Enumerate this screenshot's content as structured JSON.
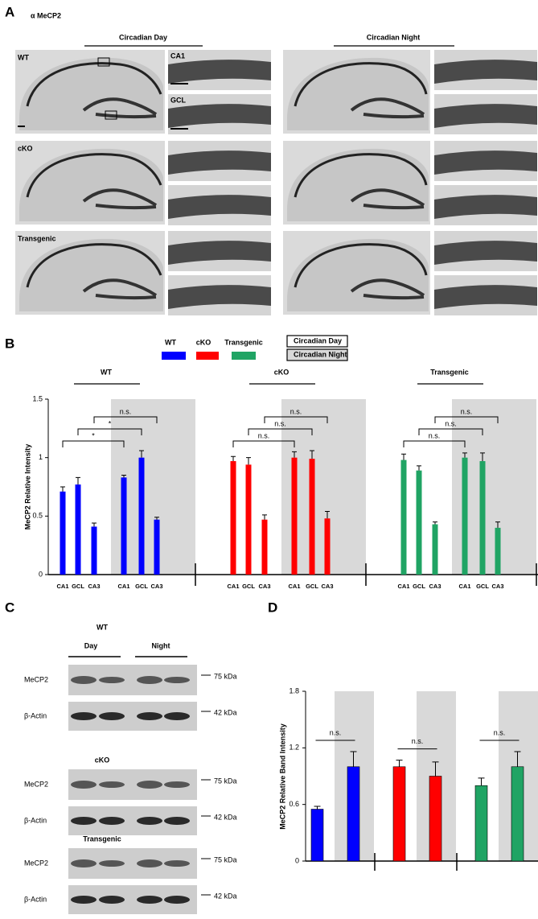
{
  "figure": {
    "panel_a": {
      "label": "A",
      "antibody": "α MeCP2",
      "conditions": [
        "Circadian Day",
        "Circadian Night"
      ],
      "rows": [
        "WT",
        "cKO",
        "Transgenic"
      ],
      "regions": [
        "CA1",
        "GCL"
      ]
    },
    "panel_c": {
      "label": "C",
      "genotypes": [
        "WT",
        "cKO",
        "Transgenic"
      ],
      "phases": [
        "Day",
        "Night"
      ],
      "proteins": [
        "MeCP2",
        "β-Actin"
      ],
      "sizes": [
        "75 kDa",
        "42 kDa"
      ]
    }
  },
  "chart_data": [
    {
      "panel": "B",
      "type": "bar",
      "ylabel": "MeCP2 Relative Intensity",
      "categories": [
        "CA1",
        "GCL",
        "CA3",
        "CA1",
        "GCL",
        "CA3"
      ],
      "series": [
        {
          "name": "WT",
          "color": "#0000ff",
          "values": [
            0.71,
            0.77,
            0.41,
            0.83,
            1.0,
            0.47
          ],
          "errors": [
            0.04,
            0.06,
            0.03,
            0.02,
            0.06,
            0.02
          ],
          "annotations": [
            "*",
            "*",
            "n.s."
          ]
        },
        {
          "name": "cKO",
          "color": "#ff0000",
          "values": [
            0.97,
            0.94,
            0.47,
            1.0,
            0.99,
            0.48
          ],
          "errors": [
            0.04,
            0.06,
            0.04,
            0.05,
            0.07,
            0.06
          ],
          "annotations": [
            "n.s.",
            "n.s.",
            "n.s."
          ]
        },
        {
          "name": "Transgenic",
          "color": "#20a464",
          "values": [
            0.98,
            0.89,
            0.43,
            1.0,
            0.97,
            0.4
          ],
          "errors": [
            0.05,
            0.04,
            0.02,
            0.04,
            0.07,
            0.05
          ],
          "annotations": [
            "n.s.",
            "n.s.",
            "n.s."
          ]
        }
      ],
      "phases": [
        {
          "name": "Circadian Day",
          "color": "#ffffff"
        },
        {
          "name": "Circadian Night",
          "color": "#d9d9d9"
        }
      ],
      "ylim": [
        0,
        1.5
      ],
      "yticks": [
        0,
        0.5,
        1,
        1.5
      ]
    },
    {
      "panel": "D",
      "type": "bar",
      "ylabel": "MeCP2 Relative Band Intensity",
      "shade_color": "#d9d9d9",
      "series": [
        {
          "color": "#0000ff",
          "values": [
            0.55,
            1.0
          ],
          "errors": [
            0.03,
            0.16
          ],
          "annotation": "n.s."
        },
        {
          "color": "#ff0000",
          "values": [
            1.0,
            0.9
          ],
          "errors": [
            0.07,
            0.15
          ],
          "annotation": "n.s."
        },
        {
          "color": "#20a464",
          "values": [
            0.8,
            1.0
          ],
          "errors": [
            0.08,
            0.16
          ],
          "annotation": "n.s."
        }
      ],
      "ylim": [
        0,
        1.8
      ],
      "yticks": [
        0,
        0.6,
        1.2,
        1.8
      ]
    }
  ]
}
